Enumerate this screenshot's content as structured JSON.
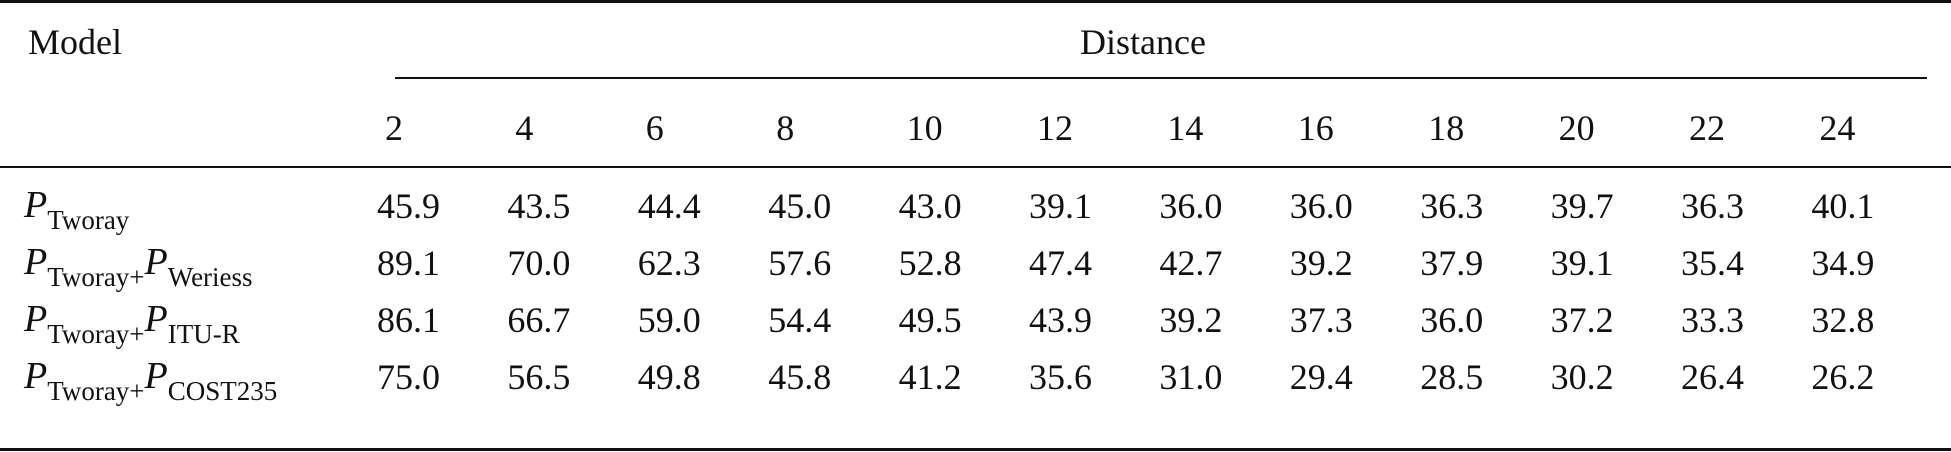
{
  "table": {
    "header": {
      "model": "Model",
      "group": "Distance",
      "columns": [
        "2",
        "4",
        "6",
        "8",
        "10",
        "12",
        "14",
        "16",
        "18",
        "20",
        "22",
        "24"
      ]
    },
    "rows": [
      {
        "model": [
          {
            "main": "P",
            "sub": "Tworay"
          }
        ],
        "values": [
          "45.9",
          "43.5",
          "44.4",
          "45.0",
          "43.0",
          "39.1",
          "36.0",
          "36.0",
          "36.3",
          "39.7",
          "36.3",
          "40.1"
        ]
      },
      {
        "model": [
          {
            "main": "P",
            "sub": "Tworay+"
          },
          {
            "main": "P",
            "sub": "Weriess"
          }
        ],
        "values": [
          "89.1",
          "70.0",
          "62.3",
          "57.6",
          "52.8",
          "47.4",
          "42.7",
          "39.2",
          "37.9",
          "39.1",
          "35.4",
          "34.9"
        ]
      },
      {
        "model": [
          {
            "main": "P",
            "sub": "Tworay+"
          },
          {
            "main": "P",
            "sub": "ITU-R"
          }
        ],
        "values": [
          "86.1",
          "66.7",
          "59.0",
          "54.4",
          "49.5",
          "43.9",
          "39.2",
          "37.3",
          "36.0",
          "37.2",
          "33.3",
          "32.8"
        ]
      },
      {
        "model": [
          {
            "main": "P",
            "sub": "Tworay+"
          },
          {
            "main": "P",
            "sub": "COST235"
          }
        ],
        "values": [
          "75.0",
          "56.5",
          "49.8",
          "45.8",
          "41.2",
          "35.6",
          "31.0",
          "29.4",
          "28.5",
          "30.2",
          "26.4",
          "26.2"
        ]
      }
    ]
  }
}
